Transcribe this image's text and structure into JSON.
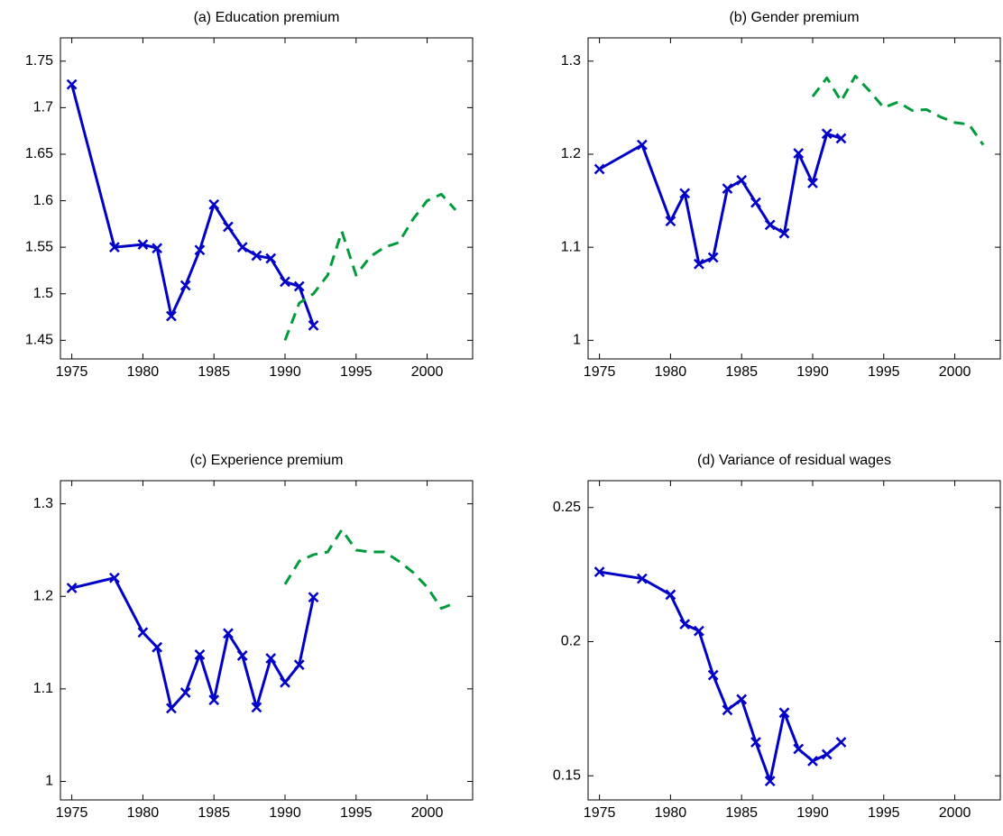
{
  "chart_data": [
    {
      "type": "line",
      "title": "(a) Education premium",
      "xlim": [
        1974.2,
        2003.2
      ],
      "xticks": [
        1975,
        1980,
        1985,
        1990,
        1995,
        2000
      ],
      "ylim": [
        1.43,
        1.775
      ],
      "yticks": [
        1.45,
        1.5,
        1.55,
        1.6,
        1.65,
        1.7,
        1.75
      ],
      "series": [
        {
          "color": "#0000c8",
          "marker": "x",
          "dashed": false,
          "x": [
            1975,
            1978,
            1980,
            1981,
            1982,
            1983,
            1984,
            1985,
            1986,
            1987,
            1988,
            1989,
            1990,
            1991,
            1992
          ],
          "values": [
            1.725,
            1.55,
            1.553,
            1.549,
            1.476,
            1.509,
            1.547,
            1.596,
            1.572,
            1.55,
            1.541,
            1.538,
            1.513,
            1.508,
            1.466
          ]
        },
        {
          "color": "#009b3a",
          "marker": null,
          "dashed": true,
          "x": [
            1990,
            1991,
            1992,
            1993,
            1994,
            1995,
            1996,
            1997,
            1998,
            1999,
            2000,
            2001,
            2002
          ],
          "values": [
            1.45,
            1.49,
            1.5,
            1.52,
            1.567,
            1.52,
            1.54,
            1.55,
            1.555,
            1.58,
            1.6,
            1.607,
            1.59
          ]
        }
      ]
    },
    {
      "type": "line",
      "title": "(b) Gender premium",
      "xlim": [
        1974.2,
        2003.2
      ],
      "xticks": [
        1975,
        1980,
        1985,
        1990,
        1995,
        2000
      ],
      "ylim": [
        0.98,
        1.325
      ],
      "yticks": [
        1,
        1.1,
        1.2,
        1.3
      ],
      "series": [
        {
          "color": "#0000c8",
          "marker": "x",
          "dashed": false,
          "x": [
            1975,
            1978,
            1980,
            1981,
            1982,
            1983,
            1984,
            1985,
            1986,
            1987,
            1988,
            1989,
            1990,
            1991,
            1992
          ],
          "values": [
            1.184,
            1.21,
            1.128,
            1.158,
            1.082,
            1.089,
            1.163,
            1.172,
            1.148,
            1.124,
            1.115,
            1.201,
            1.169,
            1.222,
            1.217
          ]
        },
        {
          "color": "#009b3a",
          "marker": null,
          "dashed": true,
          "x": [
            1990,
            1991,
            1992,
            1993,
            1994,
            1995,
            1996,
            1997,
            1998,
            1999,
            2000,
            2001,
            2002
          ],
          "values": [
            1.262,
            1.282,
            1.257,
            1.284,
            1.268,
            1.25,
            1.256,
            1.247,
            1.248,
            1.24,
            1.234,
            1.232,
            1.21
          ]
        }
      ]
    },
    {
      "type": "line",
      "title": "(c) Experience premium",
      "xlim": [
        1974.2,
        2003.2
      ],
      "xticks": [
        1975,
        1980,
        1985,
        1990,
        1995,
        2000
      ],
      "ylim": [
        0.98,
        1.325
      ],
      "yticks": [
        1,
        1.1,
        1.2,
        1.3
      ],
      "series": [
        {
          "color": "#0000c8",
          "marker": "x",
          "dashed": false,
          "x": [
            1975,
            1978,
            1980,
            1981,
            1982,
            1983,
            1984,
            1985,
            1986,
            1987,
            1988,
            1989,
            1990,
            1991,
            1992
          ],
          "values": [
            1.209,
            1.22,
            1.161,
            1.145,
            1.079,
            1.096,
            1.137,
            1.088,
            1.16,
            1.136,
            1.08,
            1.133,
            1.107,
            1.126,
            1.199
          ]
        },
        {
          "color": "#009b3a",
          "marker": null,
          "dashed": true,
          "x": [
            1990,
            1991,
            1992,
            1993,
            1994,
            1995,
            1996,
            1997,
            1998,
            1999,
            2000,
            2001,
            2002
          ],
          "values": [
            1.213,
            1.238,
            1.245,
            1.248,
            1.272,
            1.25,
            1.248,
            1.248,
            1.238,
            1.226,
            1.21,
            1.187,
            1.193
          ]
        }
      ]
    },
    {
      "type": "line",
      "title": "(d) Variance of residual wages",
      "xlim": [
        1974.2,
        2003.2
      ],
      "xticks": [
        1975,
        1980,
        1985,
        1990,
        1995,
        2000
      ],
      "ylim": [
        0.141,
        0.26
      ],
      "yticks": [
        0.15,
        0.2,
        0.25
      ],
      "series": [
        {
          "color": "#0000c8",
          "marker": "x",
          "dashed": false,
          "x": [
            1975,
            1978,
            1980,
            1981,
            1982,
            1983,
            1984,
            1985,
            1986,
            1987,
            1988,
            1989,
            1990,
            1991,
            1992
          ],
          "values": [
            0.226,
            0.2235,
            0.2175,
            0.2065,
            0.204,
            0.1875,
            0.1745,
            0.1785,
            0.1625,
            0.148,
            0.1735,
            0.16,
            0.1555,
            0.158,
            0.1625
          ]
        }
      ]
    }
  ]
}
